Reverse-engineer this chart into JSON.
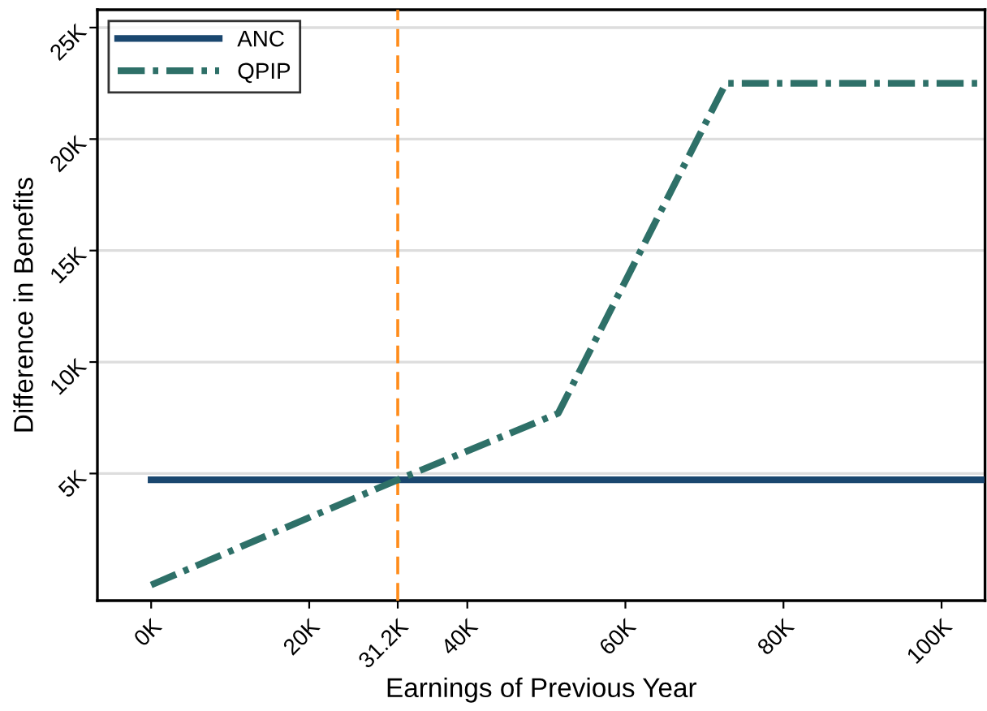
{
  "chart_data": {
    "type": "line",
    "xlabel": "Earnings of Previous Year",
    "ylabel": "Difference in Benefits",
    "series": [
      {
        "name": "ANC",
        "color": "#1a476f",
        "x": [
          0,
          105
        ],
        "values": [
          4.72,
          4.72
        ],
        "line_style": "solid"
      },
      {
        "name": "QPIP",
        "color": "#2e7068",
        "x": [
          0,
          31.2,
          51.5,
          72.7,
          105
        ],
        "values": [
          0,
          4.72,
          7.7,
          22.5,
          22.5
        ],
        "line_style": "dashdot"
      }
    ],
    "xlim": [
      -6.8,
      105.5
    ],
    "ylim": [
      -0.7,
      25.8
    ],
    "xticks": [
      {
        "value": 0,
        "label": "0K"
      },
      {
        "value": 20,
        "label": "20K"
      },
      {
        "value": 31.2,
        "label": "31.2K"
      },
      {
        "value": 40,
        "label": "40K"
      },
      {
        "value": 60,
        "label": "60K"
      },
      {
        "value": 80,
        "label": "80K"
      },
      {
        "value": 100,
        "label": "100K"
      }
    ],
    "yticks": [
      {
        "value": 5,
        "label": "5K"
      },
      {
        "value": 10,
        "label": "10K"
      },
      {
        "value": 15,
        "label": "15K"
      },
      {
        "value": 20,
        "label": "20K"
      },
      {
        "value": 25,
        "label": "25K"
      }
    ],
    "ref_lines": [
      {
        "axis": "x",
        "value": 31.2,
        "color": "#ff8c1a",
        "line_style": "dashed"
      }
    ],
    "grid": "y",
    "legend": "top left",
    "marker": "none"
  }
}
